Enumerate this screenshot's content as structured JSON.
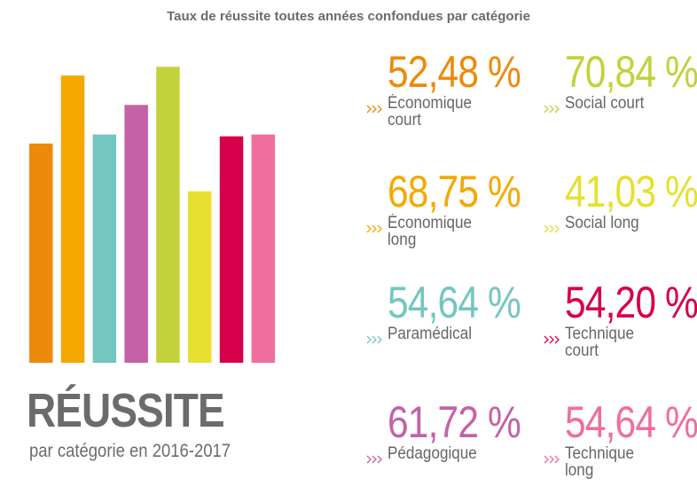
{
  "chart_data": {
    "type": "bar",
    "title": "Taux de réussite toutes années confondues par catégorie",
    "heading": "RÉUSSITE",
    "subtitle": "par catégorie en 2016-2017",
    "categories": [
      "Économique court",
      "Économique long",
      "Paramédical",
      "Pédagogique",
      "Social court",
      "Social long",
      "Technique court",
      "Technique long"
    ],
    "values": [
      52.48,
      68.75,
      54.64,
      61.72,
      70.84,
      41.03,
      54.2,
      54.64
    ],
    "value_labels": [
      "52,48 %",
      "68,75 %",
      "54,64 %",
      "61,72 %",
      "70,84 %",
      "41,03 %",
      "54,20 %",
      "54,64 %"
    ],
    "colors": [
      "#ee8a0a",
      "#f5a800",
      "#74c6c0",
      "#c462a6",
      "#c2d23a",
      "#e6e031",
      "#d6004a",
      "#ef6e9e"
    ]
  }
}
